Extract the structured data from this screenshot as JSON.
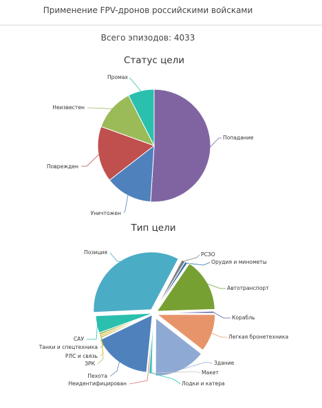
{
  "header": {
    "title": "Применение FPV-дронов российскими войсками"
  },
  "summary": {
    "total_label": "Всего эпизодов: 4033"
  },
  "chart_data": [
    {
      "type": "pie",
      "title": "Статус цели",
      "slices": [
        {
          "label": "Попадание",
          "value": 51.0,
          "color": "#8064a2"
        },
        {
          "label": "Уничтожен",
          "value": 13.5,
          "color": "#4f81bd"
        },
        {
          "label": "Поврежден",
          "value": 16.0,
          "color": "#c0504d"
        },
        {
          "label": "Неизвестен",
          "value": 12.0,
          "color": "#9bbb59"
        },
        {
          "label": "Промах",
          "value": 7.5,
          "color": "#2bbfae"
        }
      ]
    },
    {
      "type": "pie",
      "title": "Тип цели",
      "slices": [
        {
          "label": "РСЗО",
          "value": 1.0,
          "color": "#7f7f7f"
        },
        {
          "label": "Орудия и минометы",
          "value": 0.7,
          "color": "#2e6ea6"
        },
        {
          "label": "Автотранспорт",
          "value": 15.0,
          "color": "#77a033"
        },
        {
          "label": "Корабль",
          "value": 0.5,
          "color": "#5a5a9a"
        },
        {
          "label": "Легкая бронетехника",
          "value": 10.6,
          "color": "#e8946a"
        },
        {
          "label": "Здание",
          "value": 14.5,
          "color": "#8eaad4"
        },
        {
          "label": "Макет",
          "value": 0.3,
          "color": "#c6c6c6"
        },
        {
          "label": "Лодки и катера",
          "value": 0.8,
          "color": "#2bc2b6"
        },
        {
          "label": "Неидентифицирован",
          "value": 0.4,
          "color": "#d96a6a"
        },
        {
          "label": "Пехота",
          "value": 16.3,
          "color": "#4f81bd"
        },
        {
          "label": "ЗРК",
          "value": 0.5,
          "color": "#b5bf6a"
        },
        {
          "label": "РЛС и связь",
          "value": 0.5,
          "color": "#f2c02e"
        },
        {
          "label": "Танки и спецтехника",
          "value": 0.6,
          "color": "#9bbb59"
        },
        {
          "label": "САУ",
          "value": 4.8,
          "color": "#2bbfae"
        },
        {
          "label": "Позиция",
          "value": 33.5,
          "color": "#4bacc6"
        }
      ]
    }
  ]
}
